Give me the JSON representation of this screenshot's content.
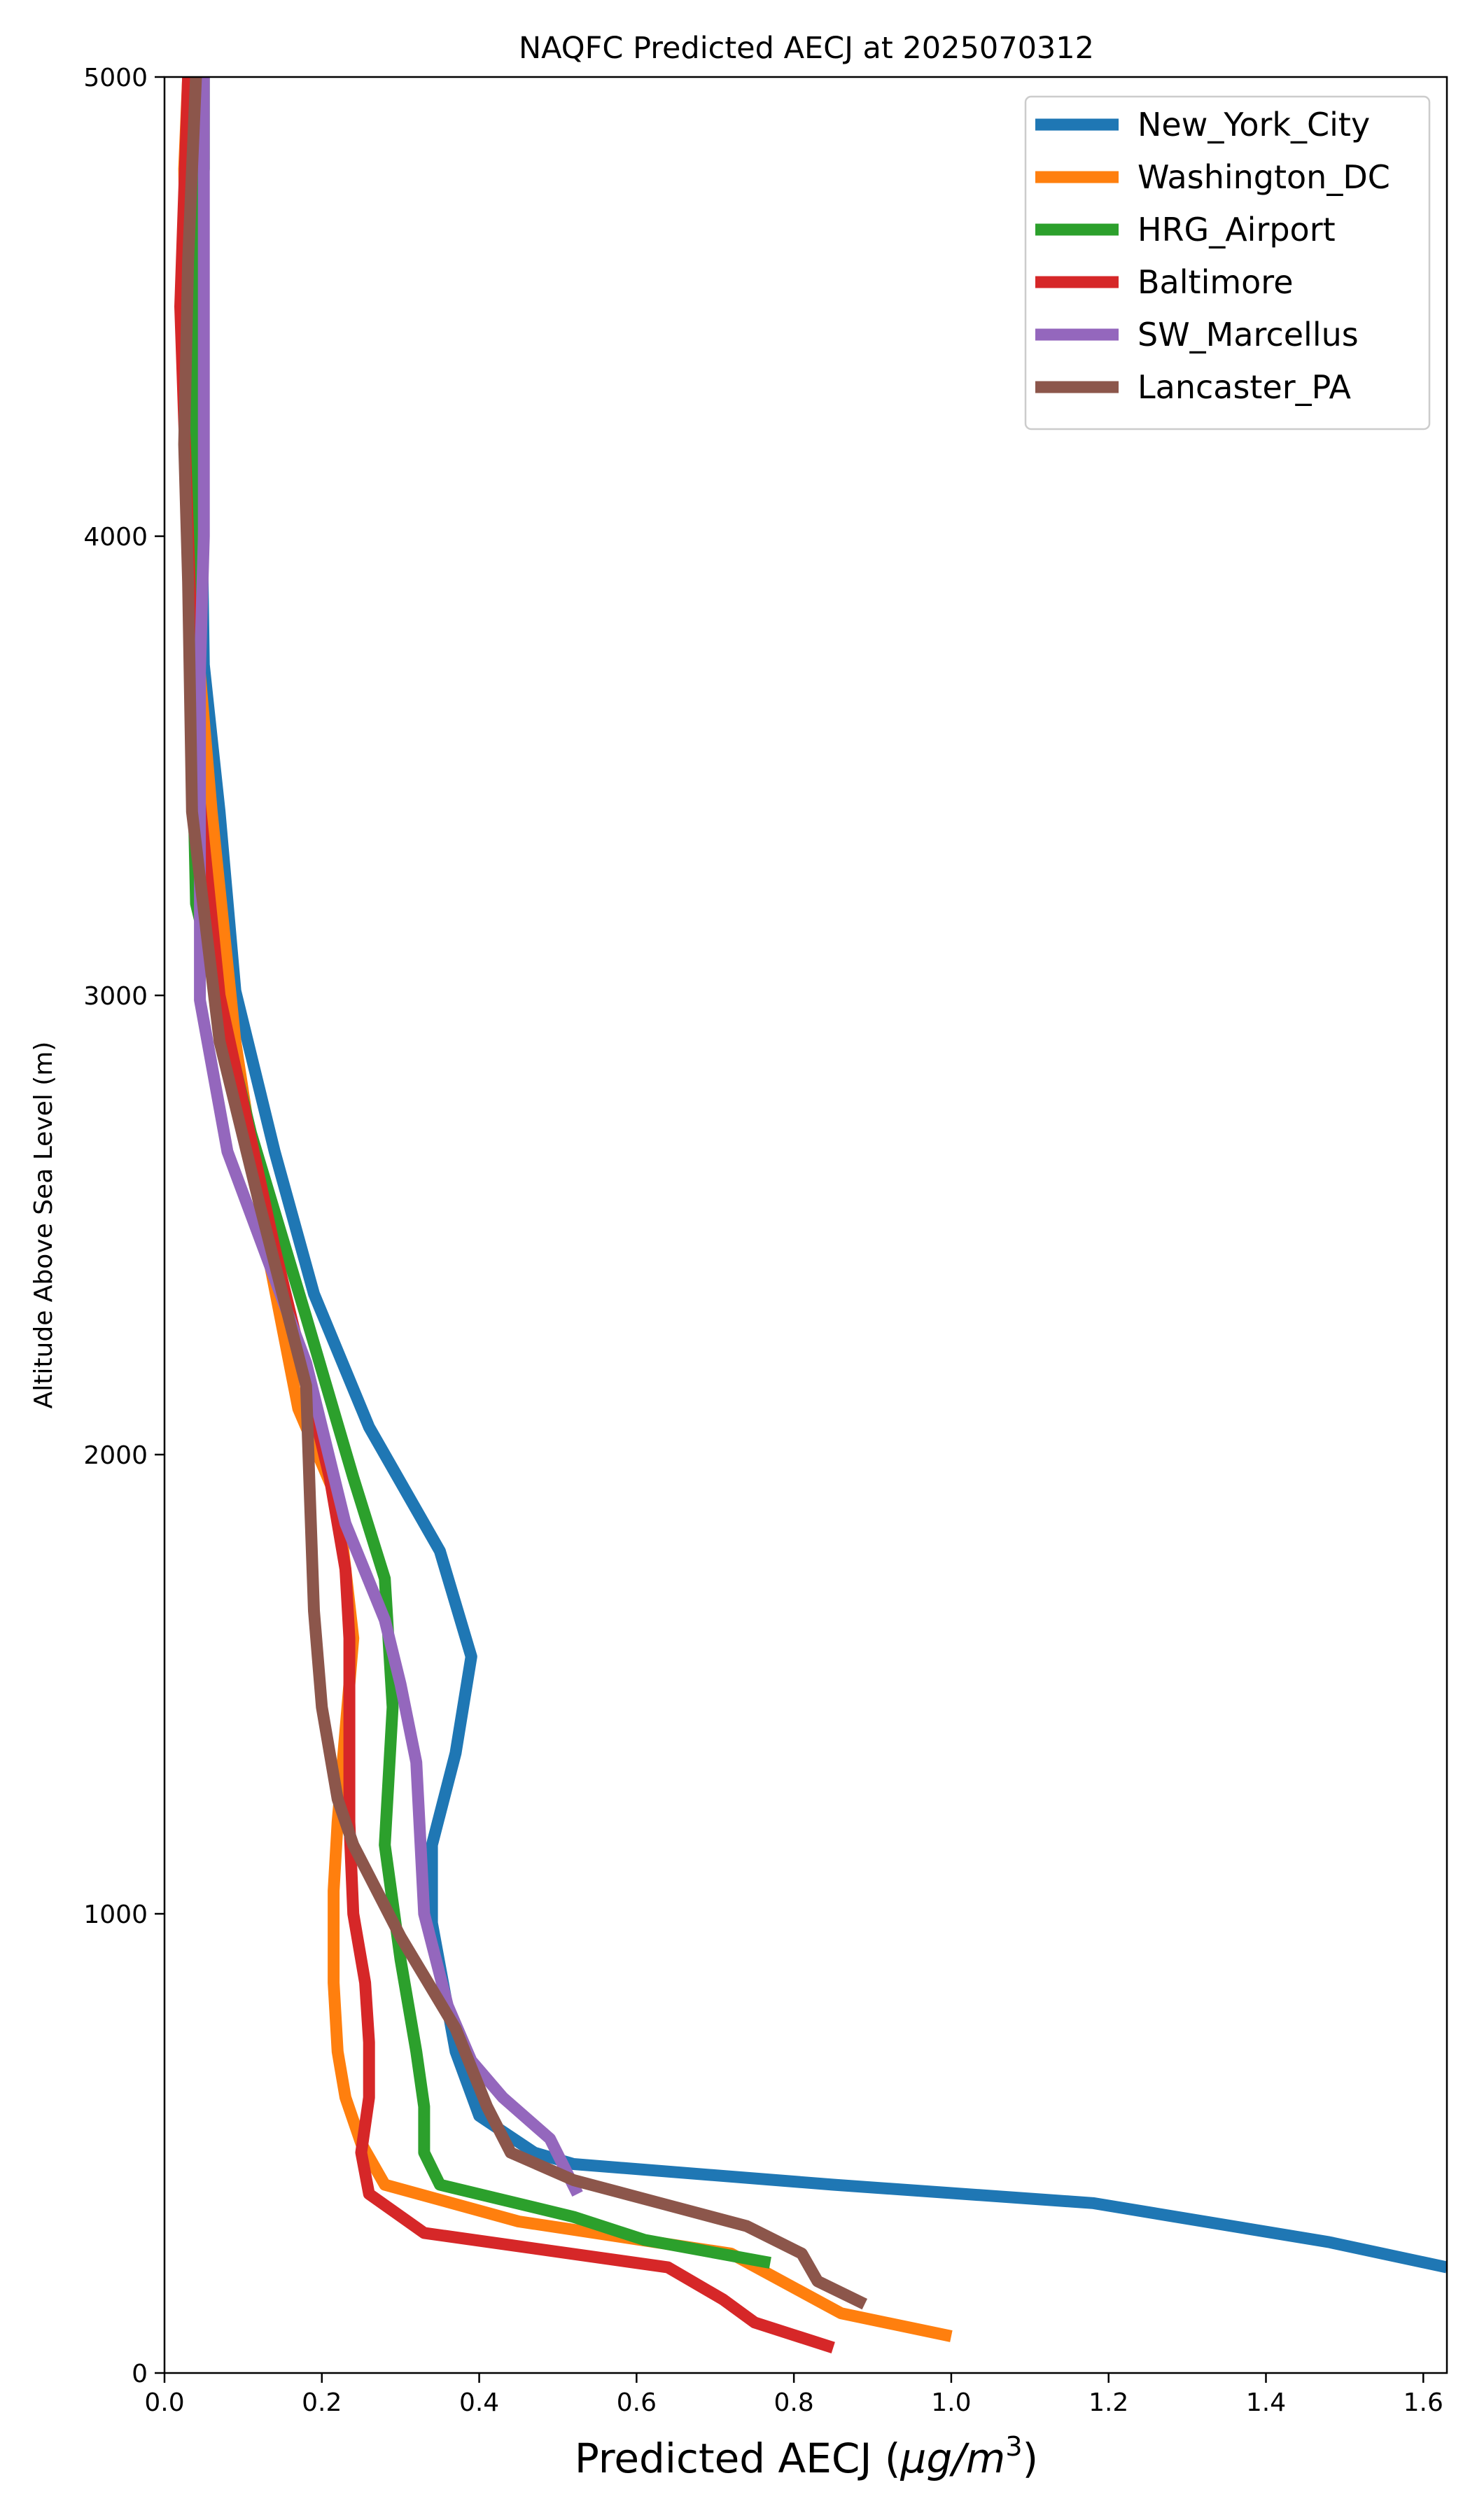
{
  "chart_data": {
    "type": "line",
    "title": "NAQFC Predicted AECJ at 2025070312",
    "xlabel": "Predicted AECJ (μg/m³)",
    "xlabel_main": "Predicted AECJ (",
    "xlabel_unit": "μg/m",
    "xlabel_sup": "3",
    "xlabel_end": ")",
    "ylabel": "Altitude Above Sea Level (m)",
    "xlim": [
      0,
      1.63
    ],
    "ylim": [
      0,
      5000
    ],
    "xticks": [
      0.0,
      0.2,
      0.4,
      0.6,
      0.8,
      1.0,
      1.2,
      1.4,
      1.6
    ],
    "xtick_labels": [
      "0.0",
      "0.2",
      "0.4",
      "0.6",
      "0.8",
      "1.0",
      "1.2",
      "1.4",
      "1.6"
    ],
    "yticks": [
      0,
      1000,
      2000,
      3000,
      4000,
      5000
    ],
    "ytick_labels": [
      "0",
      "1000",
      "2000",
      "3000",
      "4000",
      "5000"
    ],
    "grid": false,
    "legend_position": "top-right",
    "series": [
      {
        "name": "New_York_City",
        "color": "#1f77b4",
        "points": [
          [
            1.63,
            230
          ],
          [
            1.48,
            285
          ],
          [
            1.18,
            370
          ],
          [
            0.85,
            410
          ],
          [
            0.52,
            455
          ],
          [
            0.47,
            480
          ],
          [
            0.4,
            560
          ],
          [
            0.37,
            700
          ],
          [
            0.34,
            980
          ],
          [
            0.34,
            1150
          ],
          [
            0.37,
            1350
          ],
          [
            0.39,
            1560
          ],
          [
            0.35,
            1790
          ],
          [
            0.26,
            2060
          ],
          [
            0.19,
            2350
          ],
          [
            0.14,
            2660
          ],
          [
            0.09,
            3010
          ],
          [
            0.07,
            3400
          ],
          [
            0.05,
            3720
          ],
          [
            0.045,
            4300
          ],
          [
            0.045,
            5000
          ]
        ]
      },
      {
        "name": "Washington_DC",
        "color": "#ff7f0e",
        "points": [
          [
            1.0,
            80
          ],
          [
            0.86,
            130
          ],
          [
            0.72,
            260
          ],
          [
            0.45,
            330
          ],
          [
            0.28,
            410
          ],
          [
            0.25,
            500
          ],
          [
            0.23,
            600
          ],
          [
            0.22,
            700
          ],
          [
            0.215,
            850
          ],
          [
            0.215,
            1050
          ],
          [
            0.22,
            1200
          ],
          [
            0.24,
            1600
          ],
          [
            0.22,
            1900
          ],
          [
            0.17,
            2100
          ],
          [
            0.13,
            2450
          ],
          [
            0.09,
            2900
          ],
          [
            0.06,
            3400
          ],
          [
            0.04,
            3800
          ],
          [
            0.03,
            4300
          ],
          [
            0.025,
            4800
          ],
          [
            0.03,
            5000
          ]
        ]
      },
      {
        "name": "HRG_Airport",
        "color": "#2ca02c",
        "points": [
          [
            0.77,
            240
          ],
          [
            0.61,
            290
          ],
          [
            0.52,
            340
          ],
          [
            0.35,
            410
          ],
          [
            0.33,
            480
          ],
          [
            0.33,
            580
          ],
          [
            0.32,
            700
          ],
          [
            0.3,
            900
          ],
          [
            0.28,
            1150
          ],
          [
            0.29,
            1450
          ],
          [
            0.28,
            1730
          ],
          [
            0.24,
            1950
          ],
          [
            0.18,
            2300
          ],
          [
            0.11,
            2700
          ],
          [
            0.04,
            3200
          ],
          [
            0.035,
            3600
          ],
          [
            0.035,
            4000
          ],
          [
            0.04,
            4500
          ],
          [
            0.05,
            4800
          ],
          [
            0.05,
            5000
          ]
        ]
      },
      {
        "name": "Baltimore",
        "color": "#d62728",
        "points": [
          [
            0.85,
            55
          ],
          [
            0.75,
            110
          ],
          [
            0.71,
            160
          ],
          [
            0.64,
            230
          ],
          [
            0.33,
            305
          ],
          [
            0.26,
            390
          ],
          [
            0.25,
            480
          ],
          [
            0.26,
            600
          ],
          [
            0.26,
            720
          ],
          [
            0.255,
            850
          ],
          [
            0.24,
            1000
          ],
          [
            0.235,
            1200
          ],
          [
            0.235,
            1400
          ],
          [
            0.235,
            1600
          ],
          [
            0.23,
            1750
          ],
          [
            0.21,
            1950
          ],
          [
            0.14,
            2450
          ],
          [
            0.07,
            3000
          ],
          [
            0.04,
            3500
          ],
          [
            0.03,
            4000
          ],
          [
            0.02,
            4500
          ],
          [
            0.03,
            5000
          ]
        ]
      },
      {
        "name": "SW_Marcellus",
        "color": "#9467bd",
        "points": [
          [
            0.525,
            390
          ],
          [
            0.49,
            510
          ],
          [
            0.43,
            600
          ],
          [
            0.39,
            680
          ],
          [
            0.36,
            800
          ],
          [
            0.33,
            1000
          ],
          [
            0.32,
            1330
          ],
          [
            0.3,
            1500
          ],
          [
            0.28,
            1640
          ],
          [
            0.23,
            1850
          ],
          [
            0.18,
            2200
          ],
          [
            0.08,
            2660
          ],
          [
            0.045,
            2990
          ],
          [
            0.045,
            3300
          ],
          [
            0.045,
            3700
          ],
          [
            0.05,
            4000
          ],
          [
            0.05,
            4500
          ],
          [
            0.05,
            5000
          ]
        ]
      },
      {
        "name": "Lancaster_PA",
        "color": "#8c564b",
        "points": [
          [
            0.89,
            150
          ],
          [
            0.83,
            200
          ],
          [
            0.81,
            260
          ],
          [
            0.74,
            320
          ],
          [
            0.63,
            370
          ],
          [
            0.52,
            420
          ],
          [
            0.44,
            480
          ],
          [
            0.41,
            580
          ],
          [
            0.37,
            750
          ],
          [
            0.3,
            950
          ],
          [
            0.24,
            1150
          ],
          [
            0.22,
            1250
          ],
          [
            0.2,
            1450
          ],
          [
            0.19,
            1660
          ],
          [
            0.185,
            1900
          ],
          [
            0.18,
            2150
          ],
          [
            0.12,
            2550
          ],
          [
            0.07,
            2900
          ],
          [
            0.035,
            3400
          ],
          [
            0.03,
            3900
          ],
          [
            0.025,
            4200
          ],
          [
            0.03,
            4600
          ],
          [
            0.04,
            5000
          ]
        ]
      }
    ]
  }
}
